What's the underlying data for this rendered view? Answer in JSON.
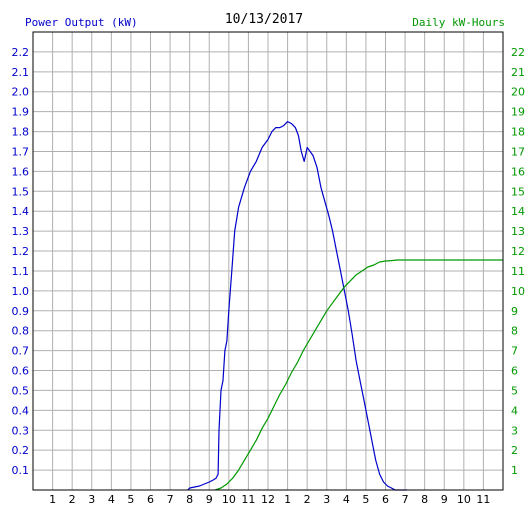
{
  "chart_data": {
    "type": "line",
    "title": "10/13/2017",
    "ylabel_left": "Power Output (kW)",
    "ylabel_right": "Daily kW-Hours",
    "x_tick_labels": [
      "1",
      "2",
      "3",
      "4",
      "5",
      "6",
      "7",
      "8",
      "9",
      "10",
      "11",
      "12",
      "1",
      "2",
      "3",
      "4",
      "5",
      "6",
      "7",
      "8",
      "9",
      "10",
      "11"
    ],
    "x_range_hours": [
      0,
      24
    ],
    "y_left_range": [
      0,
      2.3
    ],
    "y_left_ticks": [
      "0.1",
      "0.2",
      "0.3",
      "0.4",
      "0.5",
      "0.6",
      "0.7",
      "0.8",
      "0.9",
      "1.0",
      "1.1",
      "1.2",
      "1.3",
      "1.4",
      "1.5",
      "1.6",
      "1.7",
      "1.8",
      "1.9",
      "2.0",
      "2.1",
      "2.2"
    ],
    "y_right_range": [
      0,
      23
    ],
    "y_right_ticks": [
      "1",
      "2",
      "3",
      "4",
      "5",
      "6",
      "7",
      "8",
      "9",
      "10",
      "11",
      "12",
      "13",
      "14",
      "15",
      "16",
      "17",
      "18",
      "19",
      "20",
      "21",
      "22"
    ],
    "grid": true,
    "colors": {
      "power": "#0000cc",
      "energy": "#009900",
      "grid": "#b0b0b0",
      "axis": "#000000"
    },
    "series": [
      {
        "key": "power",
        "axis": "left",
        "hours": [
          7.9,
          8.0,
          8.5,
          9.0,
          9.2,
          9.35,
          9.45,
          9.5,
          9.6,
          9.7,
          9.8,
          9.9,
          10.0,
          10.15,
          10.3,
          10.5,
          10.8,
          11.1,
          11.4,
          11.7,
          12.0,
          12.2,
          12.4,
          12.6,
          12.8,
          13.0,
          13.2,
          13.4,
          13.55,
          13.7,
          13.85,
          14.0,
          14.15,
          14.3,
          14.5,
          14.7,
          14.9,
          15.1,
          15.3,
          15.5,
          15.7,
          15.9,
          16.1,
          16.3,
          16.5,
          16.7,
          16.9,
          17.1,
          17.3,
          17.5,
          17.7,
          17.9,
          18.1,
          18.3,
          18.5,
          18.7,
          18.9,
          19.1
        ],
        "values": [
          0.0,
          0.01,
          0.02,
          0.04,
          0.05,
          0.06,
          0.08,
          0.3,
          0.5,
          0.55,
          0.7,
          0.75,
          0.9,
          1.1,
          1.3,
          1.42,
          1.52,
          1.6,
          1.65,
          1.72,
          1.76,
          1.8,
          1.82,
          1.82,
          1.83,
          1.85,
          1.84,
          1.82,
          1.78,
          1.7,
          1.65,
          1.72,
          1.7,
          1.68,
          1.62,
          1.52,
          1.45,
          1.38,
          1.3,
          1.2,
          1.1,
          1.0,
          0.9,
          0.78,
          0.65,
          0.55,
          0.45,
          0.35,
          0.25,
          0.15,
          0.08,
          0.04,
          0.02,
          0.01,
          0.0,
          0.0,
          0.0,
          0.0
        ]
      },
      {
        "key": "energy",
        "axis": "right",
        "hours": [
          9.3,
          9.6,
          9.9,
          10.2,
          10.5,
          10.8,
          11.1,
          11.4,
          11.7,
          12.0,
          12.3,
          12.6,
          12.9,
          13.2,
          13.5,
          13.8,
          14.1,
          14.4,
          14.7,
          15.0,
          15.3,
          15.6,
          15.9,
          16.2,
          16.5,
          16.8,
          17.1,
          17.4,
          17.7,
          18.0,
          18.3,
          18.6,
          19.0,
          20.0,
          21.0,
          22.0,
          23.0,
          24.0
        ],
        "values": [
          0.0,
          0.1,
          0.3,
          0.6,
          1.0,
          1.5,
          2.0,
          2.5,
          3.1,
          3.6,
          4.2,
          4.8,
          5.3,
          5.9,
          6.4,
          7.0,
          7.5,
          8.0,
          8.5,
          9.0,
          9.4,
          9.8,
          10.2,
          10.5,
          10.8,
          11.0,
          11.2,
          11.3,
          11.45,
          11.5,
          11.52,
          11.55,
          11.55,
          11.55,
          11.55,
          11.55,
          11.55,
          11.55
        ]
      }
    ]
  }
}
